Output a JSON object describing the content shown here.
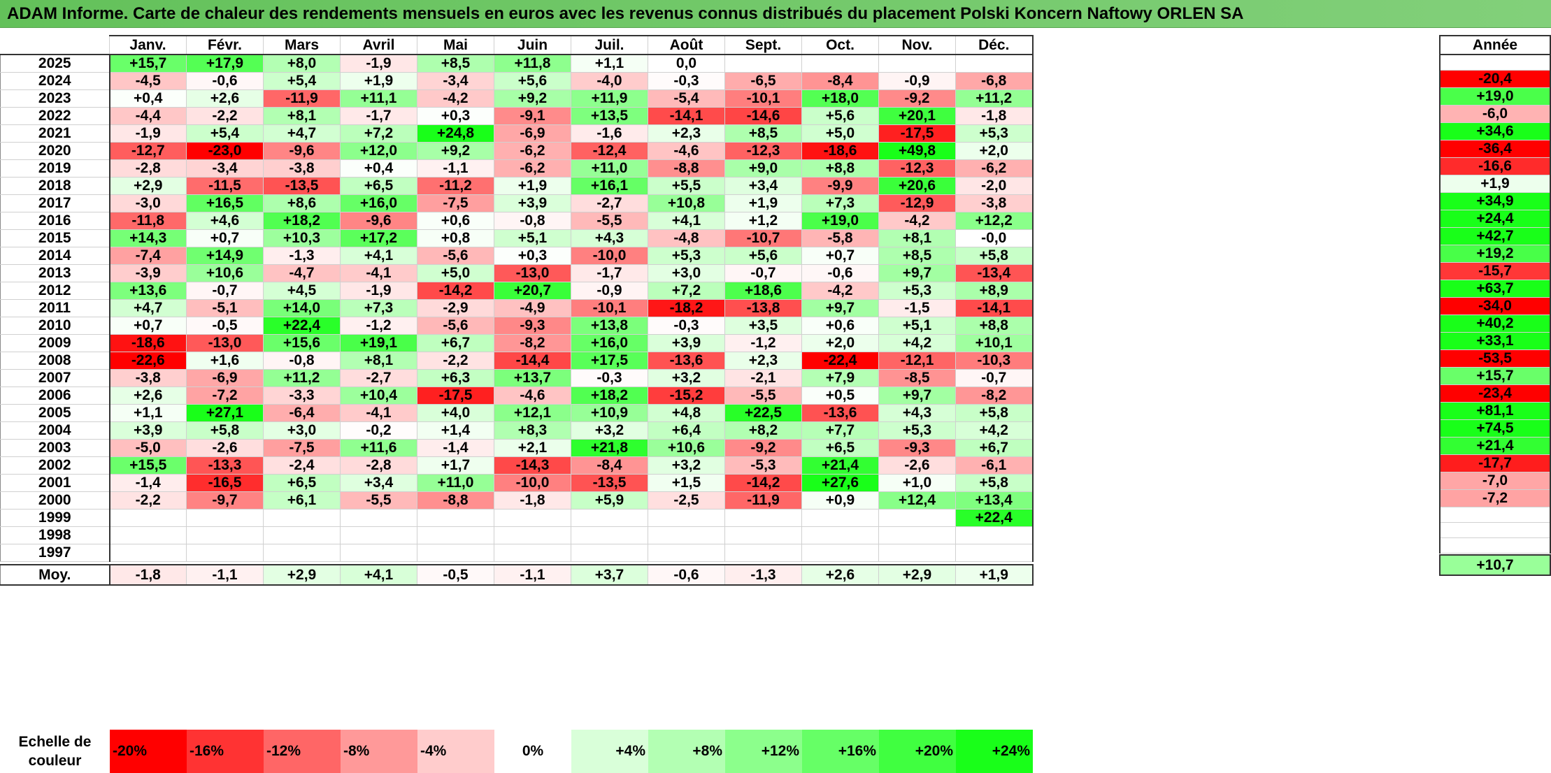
{
  "title": "ADAM Informe. Carte de chaleur des rendements mensuels en euros avec les revenus connus distribués du placement Polski Koncern Naftowy ORLEN SA",
  "chart_data": {
    "type": "heatmap",
    "columns": [
      "Janv.",
      "Févr.",
      "Mars",
      "Avril",
      "Mai",
      "Juin",
      "Juil.",
      "Août",
      "Sept.",
      "Oct.",
      "Nov.",
      "Déc."
    ],
    "year_column_header": "Année",
    "rows": [
      {
        "year": "2025",
        "months": [
          "+15,7",
          "+17,9",
          "+8,0",
          "-1,9",
          "+8,5",
          "+11,8",
          "+1,1",
          "0,0",
          "",
          "",
          "",
          ""
        ],
        "annual": ""
      },
      {
        "year": "2024",
        "months": [
          "-4,5",
          "-0,6",
          "+5,4",
          "+1,9",
          "-3,4",
          "+5,6",
          "-4,0",
          "-0,3",
          "-6,5",
          "-8,4",
          "-0,9",
          "-6,8"
        ],
        "annual": "-20,4"
      },
      {
        "year": "2023",
        "months": [
          "+0,4",
          "+2,6",
          "-11,9",
          "+11,1",
          "-4,2",
          "+9,2",
          "+11,9",
          "-5,4",
          "-10,1",
          "+18,0",
          "-9,2",
          "+11,2"
        ],
        "annual": "+19,0"
      },
      {
        "year": "2022",
        "months": [
          "-4,4",
          "-2,2",
          "+8,1",
          "-1,7",
          "+0,3",
          "-9,1",
          "+13,5",
          "-14,1",
          "-14,6",
          "+5,6",
          "+20,1",
          "-1,8"
        ],
        "annual": "-6,0"
      },
      {
        "year": "2021",
        "months": [
          "-1,9",
          "+5,4",
          "+4,7",
          "+7,2",
          "+24,8",
          "-6,9",
          "-1,6",
          "+2,3",
          "+8,5",
          "+5,0",
          "-17,5",
          "+5,3"
        ],
        "annual": "+34,6"
      },
      {
        "year": "2020",
        "months": [
          "-12,7",
          "-23,0",
          "-9,6",
          "+12,0",
          "+9,2",
          "-6,2",
          "-12,4",
          "-4,6",
          "-12,3",
          "-18,6",
          "+49,8",
          "+2,0"
        ],
        "annual": "-36,4"
      },
      {
        "year": "2019",
        "months": [
          "-2,8",
          "-3,4",
          "-3,8",
          "+0,4",
          "-1,1",
          "-6,2",
          "+11,0",
          "-8,8",
          "+9,0",
          "+8,8",
          "-12,3",
          "-6,2"
        ],
        "annual": "-16,6"
      },
      {
        "year": "2018",
        "months": [
          "+2,9",
          "-11,5",
          "-13,5",
          "+6,5",
          "-11,2",
          "+1,9",
          "+16,1",
          "+5,5",
          "+3,4",
          "-9,9",
          "+20,6",
          "-2,0"
        ],
        "annual": "+1,9"
      },
      {
        "year": "2017",
        "months": [
          "-3,0",
          "+16,5",
          "+8,6",
          "+16,0",
          "-7,5",
          "+3,9",
          "-2,7",
          "+10,8",
          "+1,9",
          "+7,3",
          "-12,9",
          "-3,8"
        ],
        "annual": "+34,9"
      },
      {
        "year": "2016",
        "months": [
          "-11,8",
          "+4,6",
          "+18,2",
          "-9,6",
          "+0,6",
          "-0,8",
          "-5,5",
          "+4,1",
          "+1,2",
          "+19,0",
          "-4,2",
          "+12,2"
        ],
        "annual": "+24,4"
      },
      {
        "year": "2015",
        "months": [
          "+14,3",
          "+0,7",
          "+10,3",
          "+17,2",
          "+0,8",
          "+5,1",
          "+4,3",
          "-4,8",
          "-10,7",
          "-5,8",
          "+8,1",
          "-0,0"
        ],
        "annual": "+42,7"
      },
      {
        "year": "2014",
        "months": [
          "-7,4",
          "+14,9",
          "-1,3",
          "+4,1",
          "-5,6",
          "+0,3",
          "-10,0",
          "+5,3",
          "+5,6",
          "+0,7",
          "+8,5",
          "+5,8"
        ],
        "annual": "+19,2"
      },
      {
        "year": "2013",
        "months": [
          "-3,9",
          "+10,6",
          "-4,7",
          "-4,1",
          "+5,0",
          "-13,0",
          "-1,7",
          "+3,0",
          "-0,7",
          "-0,6",
          "+9,7",
          "-13,4"
        ],
        "annual": "-15,7"
      },
      {
        "year": "2012",
        "months": [
          "+13,6",
          "-0,7",
          "+4,5",
          "-1,9",
          "-14,2",
          "+20,7",
          "-0,9",
          "+7,2",
          "+18,6",
          "-4,2",
          "+5,3",
          "+8,9"
        ],
        "annual": "+63,7"
      },
      {
        "year": "2011",
        "months": [
          "+4,7",
          "-5,1",
          "+14,0",
          "+7,3",
          "-2,9",
          "-4,9",
          "-10,1",
          "-18,2",
          "-13,8",
          "+9,7",
          "-1,5",
          "-14,1"
        ],
        "annual": "-34,0"
      },
      {
        "year": "2010",
        "months": [
          "+0,7",
          "-0,5",
          "+22,4",
          "-1,2",
          "-5,6",
          "-9,3",
          "+13,8",
          "-0,3",
          "+3,5",
          "+0,6",
          "+5,1",
          "+8,8"
        ],
        "annual": "+40,2"
      },
      {
        "year": "2009",
        "months": [
          "-18,6",
          "-13,0",
          "+15,6",
          "+19,1",
          "+6,7",
          "-8,2",
          "+16,0",
          "+3,9",
          "-1,2",
          "+2,0",
          "+4,2",
          "+10,1"
        ],
        "annual": "+33,1"
      },
      {
        "year": "2008",
        "months": [
          "-22,6",
          "+1,6",
          "-0,8",
          "+8,1",
          "-2,2",
          "-14,4",
          "+17,5",
          "-13,6",
          "+2,3",
          "-22,4",
          "-12,1",
          "-10,3"
        ],
        "annual": "-53,5"
      },
      {
        "year": "2007",
        "months": [
          "-3,8",
          "-6,9",
          "+11,2",
          "-2,7",
          "+6,3",
          "+13,7",
          "-0,3",
          "+3,2",
          "-2,1",
          "+7,9",
          "-8,5",
          "-0,7"
        ],
        "annual": "+15,7"
      },
      {
        "year": "2006",
        "months": [
          "+2,6",
          "-7,2",
          "-3,3",
          "+10,4",
          "-17,5",
          "-4,6",
          "+18,2",
          "-15,2",
          "-5,5",
          "+0,5",
          "+9,7",
          "-8,2"
        ],
        "annual": "-23,4"
      },
      {
        "year": "2005",
        "months": [
          "+1,1",
          "+27,1",
          "-6,4",
          "-4,1",
          "+4,0",
          "+12,1",
          "+10,9",
          "+4,8",
          "+22,5",
          "-13,6",
          "+4,3",
          "+5,8"
        ],
        "annual": "+81,1"
      },
      {
        "year": "2004",
        "months": [
          "+3,9",
          "+5,8",
          "+3,0",
          "-0,2",
          "+1,4",
          "+8,3",
          "+3,2",
          "+6,4",
          "+8,2",
          "+7,7",
          "+5,3",
          "+4,2"
        ],
        "annual": "+74,5"
      },
      {
        "year": "2003",
        "months": [
          "-5,0",
          "-2,6",
          "-7,5",
          "+11,6",
          "-1,4",
          "+2,1",
          "+21,8",
          "+10,6",
          "-9,2",
          "+6,5",
          "-9,3",
          "+6,7"
        ],
        "annual": "+21,4"
      },
      {
        "year": "2002",
        "months": [
          "+15,5",
          "-13,3",
          "-2,4",
          "-2,8",
          "+1,7",
          "-14,3",
          "-8,4",
          "+3,2",
          "-5,3",
          "+21,4",
          "-2,6",
          "-6,1"
        ],
        "annual": "-17,7"
      },
      {
        "year": "2001",
        "months": [
          "-1,4",
          "-16,5",
          "+6,5",
          "+3,4",
          "+11,0",
          "-10,0",
          "-13,5",
          "+1,5",
          "-14,2",
          "+27,6",
          "+1,0",
          "+5,8"
        ],
        "annual": "-7,0"
      },
      {
        "year": "2000",
        "months": [
          "-2,2",
          "-9,7",
          "+6,1",
          "-5,5",
          "-8,8",
          "-1,8",
          "+5,9",
          "-2,5",
          "-11,9",
          "+0,9",
          "+12,4",
          "+13,4"
        ],
        "annual": "-7,2"
      },
      {
        "year": "1999",
        "months": [
          "",
          "",
          "",
          "",
          "",
          "",
          "",
          "",
          "",
          "",
          "",
          "+22,4"
        ],
        "annual": ""
      },
      {
        "year": "1998",
        "months": [
          "",
          "",
          "",
          "",
          "",
          "",
          "",
          "",
          "",
          "",
          "",
          ""
        ],
        "annual": ""
      },
      {
        "year": "1997",
        "months": [
          "",
          "",
          "",
          "",
          "",
          "",
          "",
          "",
          "",
          "",
          "",
          ""
        ],
        "annual": ""
      }
    ],
    "average": {
      "label": "Moy.",
      "months": [
        "-1,8",
        "-1,1",
        "+2,9",
        "+4,1",
        "-0,5",
        "-1,1",
        "+3,7",
        "-0,6",
        "-1,3",
        "+2,6",
        "+2,9",
        "+1,9"
      ],
      "annual": "+10,7"
    },
    "color_scale": {
      "label": "Echelle de couleur",
      "steps": [
        {
          "text": "-20%",
          "value": -20,
          "color": "#ff0000"
        },
        {
          "text": "-16%",
          "value": -16,
          "color": "#ff3333"
        },
        {
          "text": "-12%",
          "value": -12,
          "color": "#ff6666"
        },
        {
          "text": "-8%",
          "value": -8,
          "color": "#ff9999"
        },
        {
          "text": "-4%",
          "value": -4,
          "color": "#ffcccc"
        },
        {
          "text": "0%",
          "value": 0,
          "color": "#ffffff"
        },
        {
          "text": "+4%",
          "value": 4,
          "color": "#d9ffd9"
        },
        {
          "text": "+8%",
          "value": 8,
          "color": "#b3ffb3"
        },
        {
          "text": "+12%",
          "value": 12,
          "color": "#8cff8c"
        },
        {
          "text": "+16%",
          "value": 16,
          "color": "#66ff66"
        },
        {
          "text": "+20%",
          "value": 20,
          "color": "#40ff40"
        },
        {
          "text": "+24%",
          "value": 24,
          "color": "#19ff19"
        }
      ]
    }
  }
}
